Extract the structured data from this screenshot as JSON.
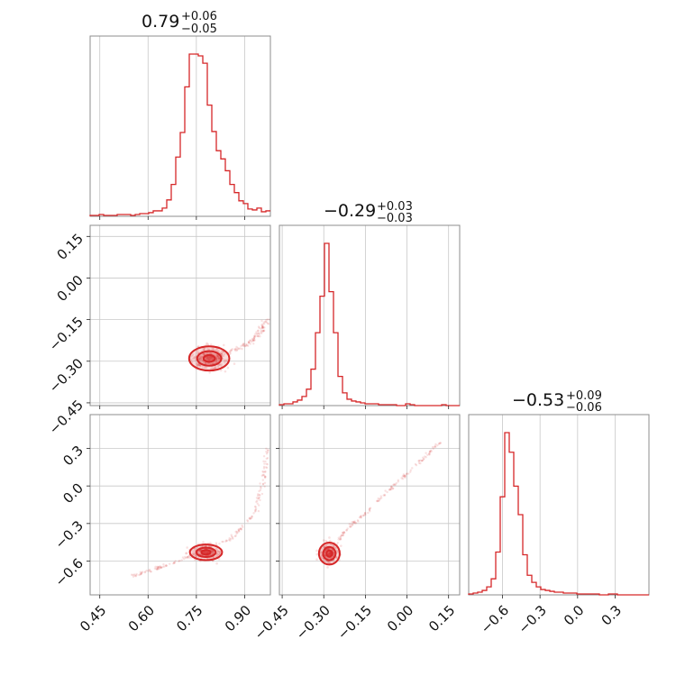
{
  "chart_data": {
    "type": "corner",
    "color": "#d62728",
    "parameters": [
      {
        "id": "p0",
        "median": "0.79",
        "plus": "+0.06",
        "minus": "−0.05",
        "range": [
          0.42,
          0.98
        ],
        "ticks": [
          0.45,
          0.6,
          0.75,
          0.9
        ],
        "tick_labels": [
          "0.45",
          "0.60",
          "0.75",
          "0.90"
        ]
      },
      {
        "id": "p1",
        "median": "−0.29",
        "plus": "+0.03",
        "minus": "−0.03",
        "range": [
          -0.46,
          0.19
        ],
        "ticks": [
          -0.45,
          -0.3,
          -0.15,
          0.0,
          0.15
        ],
        "tick_labels": [
          "−0.45",
          "−0.30",
          "−0.15",
          "0.00",
          "0.15"
        ]
      },
      {
        "id": "p2",
        "median": "−0.53",
        "plus": "+0.09",
        "minus": "−0.06",
        "range": [
          -0.87,
          0.57
        ],
        "ticks": [
          -0.6,
          -0.3,
          0.0,
          0.3
        ],
        "tick_labels": [
          "−0.6",
          "−0.3",
          "0.0",
          "0.3"
        ]
      }
    ],
    "histograms": [
      {
        "param": 0,
        "bins": [
          0.42,
          0.98
        ],
        "counts": [
          1,
          1,
          2,
          1,
          1,
          1,
          2,
          2,
          2,
          1,
          2,
          3,
          3,
          4,
          6,
          6,
          9,
          18,
          35,
          65,
          92,
          142,
          178,
          178,
          176,
          168,
          122,
          93,
          72,
          63,
          50,
          35,
          26,
          17,
          14,
          8,
          7,
          9,
          5,
          6
        ]
      },
      {
        "param": 1,
        "bins": [
          -0.46,
          0.19
        ],
        "counts": [
          1,
          2,
          2,
          4,
          6,
          10,
          18,
          40,
          80,
          120,
          178,
          125,
          80,
          32,
          14,
          7,
          5,
          4,
          3,
          2,
          2,
          2,
          1,
          1,
          1,
          1,
          0,
          0,
          2,
          1,
          0,
          0,
          0,
          0,
          0,
          0,
          1,
          0,
          0,
          0
        ]
      },
      {
        "param": 2,
        "bins": [
          -0.87,
          0.57
        ],
        "counts": [
          1,
          2,
          3,
          5,
          9,
          18,
          48,
          110,
          182,
          160,
          122,
          90,
          45,
          22,
          14,
          9,
          6,
          5,
          4,
          3,
          3,
          2,
          2,
          2,
          1,
          1,
          1,
          1,
          1,
          0,
          0,
          1,
          1,
          0,
          0,
          0,
          0,
          0,
          0,
          0
        ]
      }
    ],
    "pairs": [
      {
        "x": 0,
        "y": 1,
        "center": [
          0.79,
          -0.29
        ],
        "spread": [
          0.05,
          0.035
        ],
        "tail": [
          [
            0.87,
            -0.26
          ],
          [
            0.92,
            -0.23
          ],
          [
            0.95,
            -0.19
          ],
          [
            0.97,
            -0.15
          ]
        ]
      },
      {
        "x": 0,
        "y": 2,
        "center": [
          0.78,
          -0.53
        ],
        "spread": [
          0.04,
          0.05
        ],
        "tail": [
          [
            0.55,
            -0.72
          ],
          [
            0.65,
            -0.64
          ],
          [
            0.86,
            -0.42
          ],
          [
            0.93,
            -0.22
          ],
          [
            0.96,
            0.05
          ],
          [
            0.97,
            0.3
          ]
        ]
      },
      {
        "x": 1,
        "y": 2,
        "center": [
          -0.28,
          -0.54
        ],
        "spread": [
          0.03,
          0.07
        ],
        "tail": [
          [
            -0.22,
            -0.35
          ],
          [
            -0.15,
            -0.22
          ],
          [
            -0.05,
            0.0
          ],
          [
            0.05,
            0.2
          ],
          [
            0.12,
            0.35
          ]
        ]
      }
    ],
    "grid": true
  }
}
